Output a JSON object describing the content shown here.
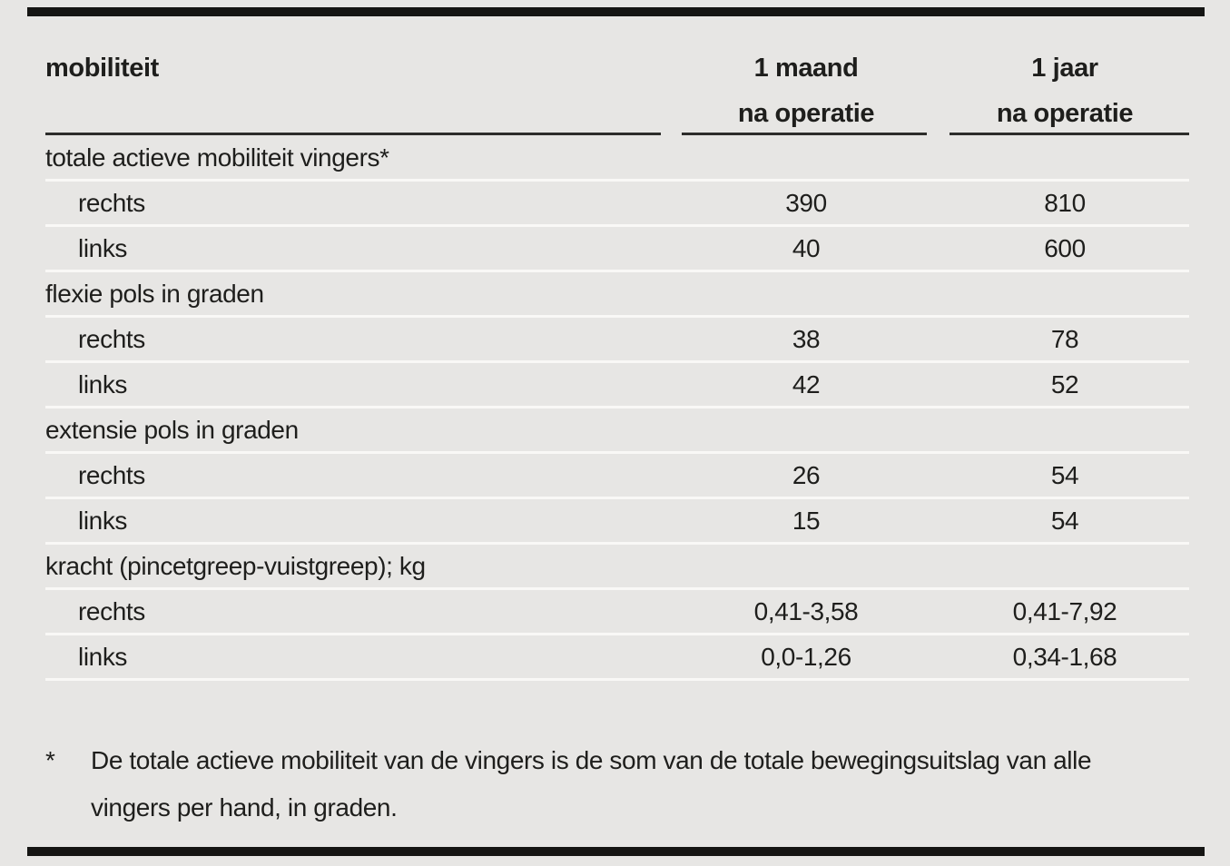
{
  "colors": {
    "background": "#e7e6e4",
    "text": "#1e1e1c",
    "thick_rule": "#151513",
    "header_underline": "#2d2d2b",
    "row_separator": "#f9f8f6"
  },
  "table": {
    "col1_header": "mobiliteit",
    "col2_header": {
      "line1": "1 maand",
      "line2": "na operatie"
    },
    "col3_header": {
      "line1": "1 jaar",
      "line2": "na operatie"
    },
    "rows": [
      {
        "label": "totale actieve mobiliteit vingers*",
        "indent": false,
        "col2": "",
        "col3": ""
      },
      {
        "label": "rechts",
        "indent": true,
        "col2": "390",
        "col3": "810"
      },
      {
        "label": "links",
        "indent": true,
        "col2": "40",
        "col3": "600"
      },
      {
        "label": "flexie pols in graden",
        "indent": false,
        "col2": "",
        "col3": ""
      },
      {
        "label": "rechts",
        "indent": true,
        "col2": "38",
        "col3": "78"
      },
      {
        "label": "links",
        "indent": true,
        "col2": "42",
        "col3": "52"
      },
      {
        "label": "extensie pols in graden",
        "indent": false,
        "col2": "",
        "col3": ""
      },
      {
        "label": "rechts",
        "indent": true,
        "col2": "26",
        "col3": "54"
      },
      {
        "label": "links",
        "indent": true,
        "col2": "15",
        "col3": "54"
      },
      {
        "label": "kracht (pincetgreep-vuistgreep); kg",
        "indent": false,
        "col2": "",
        "col3": ""
      },
      {
        "label": "rechts",
        "indent": true,
        "col2": "0,41-3,58",
        "col3": "0,41-7,92"
      },
      {
        "label": "links",
        "indent": true,
        "col2": "0,0-1,26",
        "col3": "0,34-1,68"
      }
    ]
  },
  "footnote": {
    "marker": "*",
    "text": "De totale actieve mobiliteit van de vingers is de som van de totale bewegingsuitslag van alle vingers per hand, in graden."
  },
  "chart_data": {
    "type": "table",
    "title": "mobiliteit",
    "columns": [
      "mobiliteit",
      "1 maand na operatie",
      "1 jaar na operatie"
    ],
    "rows": [
      [
        "totale actieve mobiliteit vingers*",
        null,
        null
      ],
      [
        "rechts",
        390,
        810
      ],
      [
        "links",
        40,
        600
      ],
      [
        "flexie pols in graden",
        null,
        null
      ],
      [
        "rechts",
        38,
        78
      ],
      [
        "links",
        42,
        52
      ],
      [
        "extensie pols in graden",
        null,
        null
      ],
      [
        "rechts",
        26,
        54
      ],
      [
        "links",
        15,
        54
      ],
      [
        "kracht (pincetgreep-vuistgreep); kg",
        null,
        null
      ],
      [
        "rechts",
        "0,41-3,58",
        "0,41-7,92"
      ],
      [
        "links",
        "0,0-1,26",
        "0,34-1,68"
      ]
    ]
  }
}
